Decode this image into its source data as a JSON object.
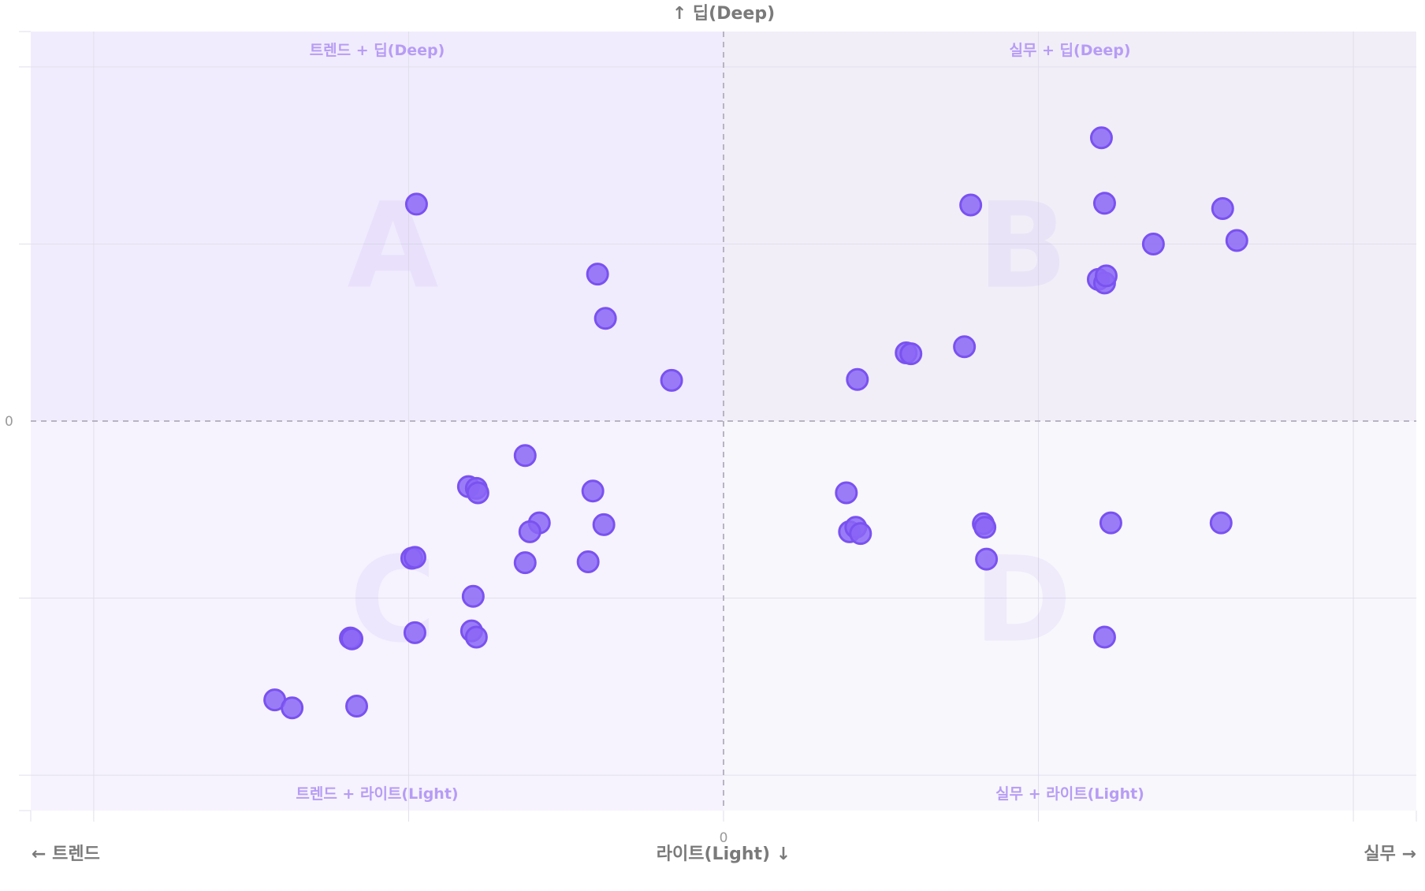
{
  "chart_data": {
    "type": "scatter",
    "title": "",
    "xlabel_left": "← 트렌드",
    "xlabel_center": "라이트(Light) ↓",
    "xlabel_right": "실무 →",
    "ylabel_top": "↑ 딥(Deep)",
    "x_zero_tick": "0",
    "y_zero_tick": "0",
    "xlim": [
      -4.4,
      4.4
    ],
    "ylim": [
      -4.4,
      4.4
    ],
    "grid": true,
    "quadrants": {
      "top_left": "트렌드 + 딥(Deep)",
      "top_right": "실무 + 딥(Deep)",
      "bottom_left": "트렌드 + 라이트(Light)",
      "bottom_right": "실무 + 라이트(Light)",
      "letters": [
        "A",
        "B",
        "C",
        "D"
      ]
    },
    "quadrant_colors": {
      "top_left": "#f1ecfd",
      "top_right": "#f1eef8",
      "bottom_left": "#f6f3fe",
      "bottom_right": "#f8f7fc"
    },
    "point_color": "#8b66f6",
    "points": [
      {
        "x": -1.95,
        "y": 2.45
      },
      {
        "x": -0.8,
        "y": 1.66
      },
      {
        "x": -0.75,
        "y": 1.16
      },
      {
        "x": -0.33,
        "y": 0.46
      },
      {
        "x": 2.4,
        "y": 3.2
      },
      {
        "x": 1.57,
        "y": 2.44
      },
      {
        "x": 2.42,
        "y": 2.46
      },
      {
        "x": 3.17,
        "y": 2.4
      },
      {
        "x": 2.73,
        "y": 2.0
      },
      {
        "x": 3.26,
        "y": 2.04
      },
      {
        "x": 2.38,
        "y": 1.6
      },
      {
        "x": 2.42,
        "y": 1.56
      },
      {
        "x": 2.43,
        "y": 1.64
      },
      {
        "x": 1.53,
        "y": 0.84
      },
      {
        "x": 1.16,
        "y": 0.77
      },
      {
        "x": 1.19,
        "y": 0.76
      },
      {
        "x": 0.85,
        "y": 0.47
      },
      {
        "x": -1.26,
        "y": -0.39
      },
      {
        "x": -1.62,
        "y": -0.74
      },
      {
        "x": -1.57,
        "y": -0.76
      },
      {
        "x": -1.56,
        "y": -0.81
      },
      {
        "x": -0.83,
        "y": -0.79
      },
      {
        "x": -1.17,
        "y": -1.15
      },
      {
        "x": -1.23,
        "y": -1.25
      },
      {
        "x": -0.76,
        "y": -1.17
      },
      {
        "x": -1.98,
        "y": -1.55
      },
      {
        "x": -1.96,
        "y": -1.54
      },
      {
        "x": -1.26,
        "y": -1.6
      },
      {
        "x": -0.86,
        "y": -1.59
      },
      {
        "x": -1.59,
        "y": -1.98
      },
      {
        "x": -2.37,
        "y": -2.45
      },
      {
        "x": -2.36,
        "y": -2.46
      },
      {
        "x": -1.96,
        "y": -2.39
      },
      {
        "x": -1.6,
        "y": -2.37
      },
      {
        "x": -1.57,
        "y": -2.44
      },
      {
        "x": -2.85,
        "y": -3.15
      },
      {
        "x": -2.74,
        "y": -3.24
      },
      {
        "x": -2.33,
        "y": -3.22
      },
      {
        "x": 0.78,
        "y": -0.81
      },
      {
        "x": 0.8,
        "y": -1.25
      },
      {
        "x": 0.84,
        "y": -1.2
      },
      {
        "x": 0.87,
        "y": -1.27
      },
      {
        "x": 1.65,
        "y": -1.16
      },
      {
        "x": 1.66,
        "y": -1.2
      },
      {
        "x": 2.46,
        "y": -1.15
      },
      {
        "x": 3.16,
        "y": -1.15
      },
      {
        "x": 1.67,
        "y": -1.56
      },
      {
        "x": 2.42,
        "y": -2.44
      }
    ]
  }
}
